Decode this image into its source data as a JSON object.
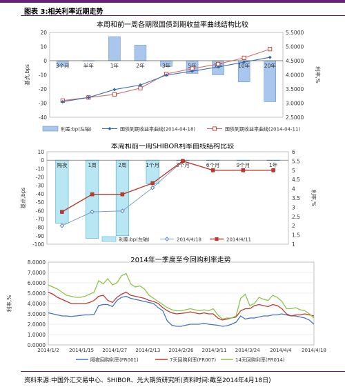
{
  "header": {
    "title": "图表 3:相关利率近期走势"
  },
  "footer": {
    "source": "资料来源:中国外汇交易中心、SHIBOR、光大期货研究所(资料时间:截至2014年4月18日)"
  },
  "chart_data": [
    {
      "type": "bar+line",
      "title": "本周和前一周各期限国债到期收益率曲线结构比较",
      "categories": [
        "3个月",
        "半年",
        "1年",
        "2年",
        "3年",
        "5年",
        "7年",
        "10年",
        "20年"
      ],
      "y_left": {
        "label": "基点,bps",
        "lim": [
          -40,
          20
        ],
        "ticks": [
          20,
          10,
          0,
          -10,
          -20,
          -30,
          -40
        ]
      },
      "y_right": {
        "label": "利率,%",
        "lim": [
          2.5,
          5.5
        ],
        "ticks": [
          "5.5000",
          "5.0000",
          "4.5000",
          "4.0000",
          "3.5000",
          "3.0000",
          "2.5000"
        ]
      },
      "bars": {
        "name": "利差:bp(左轴)",
        "values": [
          -4,
          0,
          17,
          11,
          -4,
          -9,
          -10,
          -15,
          -29
        ]
      },
      "series": [
        {
          "name": "国债到期收益率曲线(2014-04-18)",
          "values": [
            3.05,
            3.2,
            3.48,
            3.64,
            3.99,
            4.13,
            4.28,
            4.45,
            4.62
          ]
        },
        {
          "name": "国债到期收益率曲线(2014-04-11)",
          "values": [
            3.09,
            3.2,
            3.31,
            3.53,
            4.03,
            4.22,
            4.38,
            4.6,
            4.91
          ]
        }
      ]
    },
    {
      "type": "bar+line",
      "title": "本周和前一周SHIBOR利率曲线结构比较",
      "categories": [
        "隔夜",
        "1周",
        "2周",
        "1个月",
        "3个月",
        "6个月",
        "9个月",
        "1年"
      ],
      "y_left": {
        "label": "基点,bps",
        "lim": [
          -100,
          10
        ],
        "ticks": [
          10,
          0,
          -10,
          -20,
          -30,
          -40,
          -50,
          -60,
          -70,
          -80,
          -90,
          -100
        ]
      },
      "y_right": {
        "label": "利率,%",
        "lim": [
          1,
          6
        ],
        "ticks": [
          "6",
          "5.5",
          "5",
          "4.5",
          "4",
          "3.5",
          "3",
          "2.5",
          "2",
          "1.5",
          "1"
        ]
      },
      "bars": {
        "name": "利差:bp(左轴)",
        "values": [
          -75,
          -93,
          -90,
          -28,
          0,
          0,
          0,
          0
        ]
      },
      "series": [
        {
          "name": "2014/4/18",
          "values": [
            2.0,
            2.75,
            2.8,
            4.05,
            5.5,
            5.0,
            5.0,
            5.0
          ]
        },
        {
          "name": "2014/4/11",
          "values": [
            2.75,
            3.7,
            3.7,
            4.3,
            5.5,
            5.0,
            5.0,
            5.0
          ]
        }
      ]
    },
    {
      "type": "line",
      "title": "2014年一季度至今回购利率走势",
      "y_label": "利率,%",
      "ylim": [
        0,
        8
      ],
      "y_ticks": [
        "8.0000",
        "7.0000",
        "6.0000",
        "5.0000",
        "4.0000",
        "3.0000",
        "2.0000",
        "1.0000",
        "0.0000"
      ],
      "x_ticks": [
        "2014/1/2",
        "2014/1/15",
        "2014/1/27",
        "2014/2/13",
        "2014/2/26",
        "2014/3/11",
        "2014/3/24",
        "2014/4/4",
        "2014/4/18"
      ],
      "series": [
        {
          "name": "隔夜回购利率(FR001)",
          "color": "#4472c4",
          "values": [
            3.1,
            3.0,
            2.9,
            2.8,
            2.8,
            2.75,
            2.8,
            2.85,
            2.9,
            2.9,
            2.95,
            3.8,
            3.9,
            3.9,
            3.7,
            4.3,
            4.6,
            4.7,
            4.5,
            4.4,
            4.3,
            4.2,
            4.1,
            4.0,
            3.6,
            3.3,
            2.3,
            1.9,
            1.8,
            1.8,
            1.9,
            2.0,
            2.0,
            2.0,
            2.1,
            2.0,
            1.95,
            1.9,
            1.8,
            1.85,
            2.0,
            2.2,
            2.8,
            2.5,
            2.6,
            2.6,
            2.7,
            2.8,
            2.8,
            2.9,
            2.9,
            3.0,
            2.9,
            2.8,
            2.8,
            2.7,
            2.6,
            2.4,
            2.0
          ]
        },
        {
          "name": "7天回购利率(FR007)",
          "color": "#c0392b",
          "values": [
            5.1,
            4.9,
            4.6,
            4.4,
            4.2,
            4.0,
            4.0,
            4.0,
            4.0,
            4.1,
            4.3,
            4.7,
            4.8,
            4.3,
            4.1,
            4.6,
            4.9,
            5.1,
            4.8,
            4.7,
            4.6,
            4.5,
            4.3,
            4.2,
            4.0,
            3.6,
            3.3,
            3.1,
            3.0,
            3.05,
            3.1,
            3.2,
            3.1,
            3.0,
            3.1,
            3.0,
            3.0,
            2.6,
            2.4,
            2.5,
            2.6,
            2.7,
            3.3,
            3.5,
            3.5,
            3.8,
            3.9,
            3.8,
            3.7,
            3.9,
            3.8,
            3.5,
            3.0,
            2.8,
            2.9,
            2.9,
            3.0,
            2.9,
            2.8
          ]
        },
        {
          "name": "14天回购利率(FR014)",
          "color": "#8bc34a",
          "values": [
            5.8,
            5.6,
            5.4,
            5.1,
            4.8,
            4.7,
            4.6,
            4.6,
            4.7,
            4.9,
            5.1,
            6.2,
            5.9,
            6.4,
            5.8,
            6.0,
            6.7,
            6.9,
            5.9,
            5.6,
            5.7,
            5.4,
            4.8,
            4.5,
            4.2,
            3.9,
            3.6,
            3.4,
            3.3,
            3.3,
            3.4,
            3.5,
            3.4,
            3.3,
            3.4,
            3.3,
            3.5,
            2.9,
            2.5,
            2.6,
            2.6,
            2.8,
            4.5,
            4.9,
            3.8,
            4.0,
            4.6,
            4.4,
            4.3,
            4.8,
            4.6,
            4.2,
            3.5,
            3.5,
            3.6,
            3.4,
            3.3,
            3.0,
            2.6
          ]
        }
      ]
    }
  ]
}
